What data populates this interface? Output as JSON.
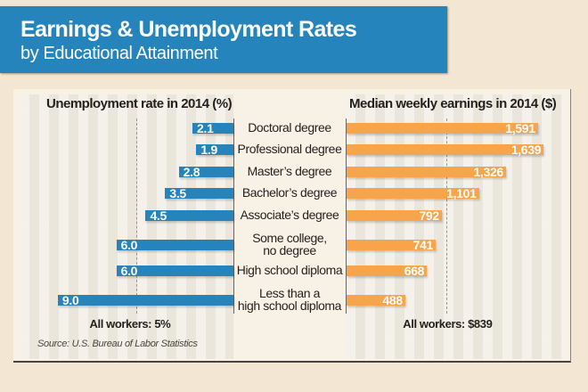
{
  "header": {
    "title": "Earnings & Unemployment Rates",
    "subtitle": "by Educational Attainment"
  },
  "colors": {
    "banner": "#2584bb",
    "unemployment_bar": "#2584bb",
    "earnings_bar": "#f7a44a",
    "background": "#f3e6d3"
  },
  "chart_data": {
    "type": "bar",
    "title": "Earnings & Unemployment Rates by Educational Attainment",
    "categories": [
      "Doctoral degree",
      "Professional degree",
      "Master's degree",
      "Bachelor's degree",
      "Associate's degree",
      "Some college, no degree",
      "High school diploma",
      "Less than a high school diploma"
    ],
    "category_lines": [
      [
        "Doctoral degree"
      ],
      [
        "Professional degree"
      ],
      [
        "Master’s degree"
      ],
      [
        "Bachelor’s degree"
      ],
      [
        "Associate’s degree"
      ],
      [
        "Some college,",
        "no degree"
      ],
      [
        "High school diploma"
      ],
      [
        "Less than a",
        "high school diploma"
      ]
    ],
    "series": [
      {
        "name": "Unemployment rate in 2014 (%)",
        "orientation": "horizontal-left",
        "values": [
          2.1,
          1.9,
          2.8,
          3.5,
          4.5,
          6.0,
          6.0,
          9.0
        ],
        "labels": [
          "2.1",
          "1.9",
          "2.8",
          "3.5",
          "4.5",
          "6.0",
          "6.0",
          "9.0"
        ],
        "reference": {
          "value": 5,
          "label": "All workers: 5%"
        },
        "xlim": [
          0,
          9
        ]
      },
      {
        "name": "Median weekly earnings in 2014 ($)",
        "orientation": "horizontal-right",
        "values": [
          1591,
          1639,
          1326,
          1101,
          792,
          741,
          668,
          488
        ],
        "labels": [
          "1,591",
          "1,639",
          "1,326",
          "1,101",
          "792",
          "741",
          "668",
          "488"
        ],
        "reference": {
          "value": 839,
          "label": "All workers: $839"
        },
        "xlim": [
          0,
          1700
        ]
      }
    ],
    "xlabel": "",
    "ylabel": "",
    "grid": false,
    "source": "Source: U.S. Bureau of Labor Statistics"
  }
}
